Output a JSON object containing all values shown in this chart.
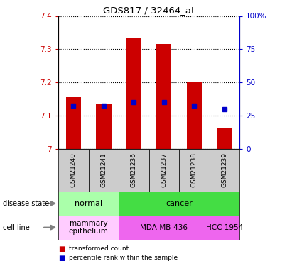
{
  "title": "GDS817 / 32464_at",
  "samples": [
    "GSM21240",
    "GSM21241",
    "GSM21236",
    "GSM21237",
    "GSM21238",
    "GSM21239"
  ],
  "red_values": [
    7.155,
    7.135,
    7.335,
    7.315,
    7.2,
    7.065
  ],
  "blue_values": [
    7.13,
    7.13,
    7.14,
    7.14,
    7.13,
    7.12
  ],
  "ymin": 7.0,
  "ymax": 7.4,
  "yticks": [
    7.0,
    7.1,
    7.2,
    7.3,
    7.4
  ],
  "ytick_labels": [
    "7",
    "7.1",
    "7.2",
    "7.3",
    "7.4"
  ],
  "right_yticks": [
    0,
    25,
    50,
    75,
    100
  ],
  "right_ytick_labels": [
    "0",
    "25",
    "50",
    "75",
    "100%"
  ],
  "disease_state": [
    {
      "label": "normal",
      "cols": [
        0,
        1
      ],
      "color": "#aaffaa"
    },
    {
      "label": "cancer",
      "cols": [
        2,
        3,
        4,
        5
      ],
      "color": "#44dd44"
    }
  ],
  "cell_line": [
    {
      "label": "mammary\nepithelium",
      "cols": [
        0,
        1
      ],
      "color": "#ffccff"
    },
    {
      "label": "MDA-MB-436",
      "cols": [
        2,
        3,
        4
      ],
      "color": "#ee66ee"
    },
    {
      "label": "HCC 1954",
      "cols": [
        5
      ],
      "color": "#ee66ee"
    }
  ],
  "bar_color": "#cc0000",
  "blue_color": "#0000cc",
  "tick_color_left": "#cc0000",
  "tick_color_right": "#0000cc",
  "sample_bg_color": "#cccccc",
  "legend_red": "transformed count",
  "legend_blue": "percentile rank within the sample",
  "disease_state_label": "disease state",
  "cell_line_label": "cell line"
}
